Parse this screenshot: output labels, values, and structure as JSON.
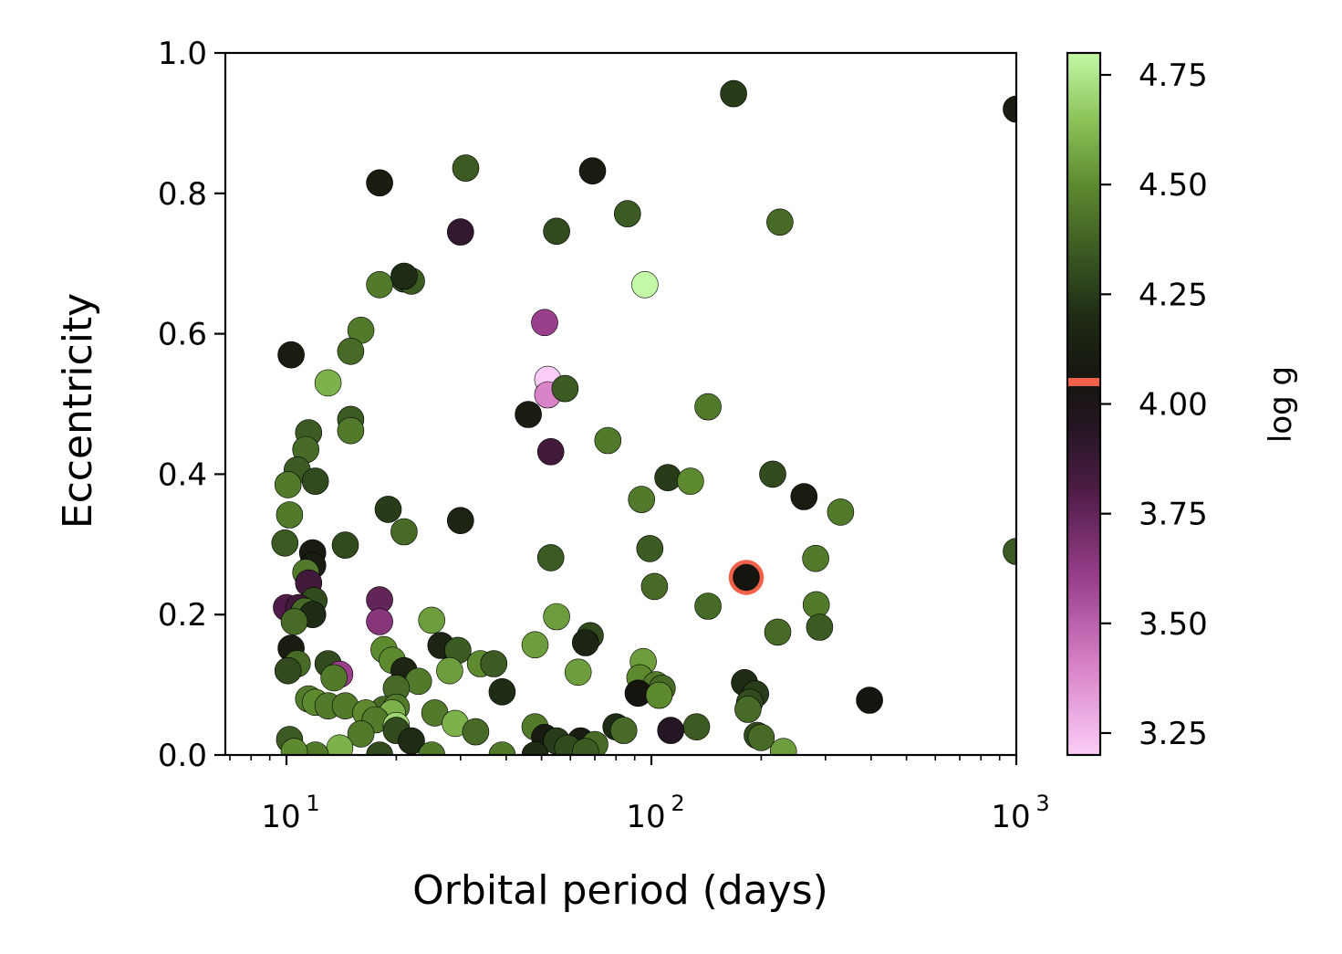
{
  "chart_data": {
    "type": "scatter",
    "xscale": "log",
    "xlabel": "Orbital period  (days)",
    "ylabel": "Eccentricity",
    "xlim": [
      6.8,
      1000
    ],
    "ylim": [
      0.0,
      1.0
    ],
    "x_ticks": [
      {
        "value": 10,
        "label": "10",
        "exp": "1"
      },
      {
        "value": 100,
        "label": "10",
        "exp": "2"
      },
      {
        "value": 1000,
        "label": "10",
        "exp": "3"
      }
    ],
    "y_ticks": [
      {
        "value": 0.0,
        "label": "0.0"
      },
      {
        "value": 0.2,
        "label": "0.2"
      },
      {
        "value": 0.4,
        "label": "0.4"
      },
      {
        "value": 0.6,
        "label": "0.6"
      },
      {
        "value": 0.8,
        "label": "0.8"
      },
      {
        "value": 1.0,
        "label": "1.0"
      }
    ],
    "colorbar": {
      "label": "log g",
      "range": [
        3.2,
        4.8
      ],
      "ticks": [
        {
          "value": 3.25,
          "label": "3.25"
        },
        {
          "value": 3.5,
          "label": "3.50"
        },
        {
          "value": 3.75,
          "label": "3.75"
        },
        {
          "value": 4.0,
          "label": "4.00"
        },
        {
          "value": 4.25,
          "label": "4.25"
        },
        {
          "value": 4.5,
          "label": "4.50"
        },
        {
          "value": 4.75,
          "label": "4.75"
        }
      ],
      "marker_value": 4.05,
      "marker_color": "#f4614b",
      "stops": [
        {
          "v": 3.2,
          "c": "#fbcdf6"
        },
        {
          "v": 3.4,
          "c": "#d983c9"
        },
        {
          "v": 3.6,
          "c": "#9a3f8c"
        },
        {
          "v": 3.8,
          "c": "#4f1c47"
        },
        {
          "v": 3.95,
          "c": "#241622"
        },
        {
          "v": 4.05,
          "c": "#15140f"
        },
        {
          "v": 4.2,
          "c": "#1f2c15"
        },
        {
          "v": 4.35,
          "c": "#3b5b22"
        },
        {
          "v": 4.5,
          "c": "#5e8a2f"
        },
        {
          "v": 4.65,
          "c": "#8cc45a"
        },
        {
          "v": 4.8,
          "c": "#c2f8a6"
        }
      ]
    },
    "highlight": {
      "period": 182,
      "ecc": 0.253,
      "logg": 4.05,
      "ring_color": "#f4614b"
    },
    "points": [
      [
        168,
        0.942,
        4.25
      ],
      [
        1000,
        0.92,
        4.1
      ],
      [
        31,
        0.836,
        4.35
      ],
      [
        69,
        0.832,
        4.1
      ],
      [
        18,
        0.815,
        4.1
      ],
      [
        86,
        0.771,
        4.35
      ],
      [
        225,
        0.759,
        4.4
      ],
      [
        30,
        0.745,
        3.9
      ],
      [
        55,
        0.746,
        4.3
      ],
      [
        21,
        0.678,
        4.3
      ],
      [
        22,
        0.675,
        4.35
      ],
      [
        18,
        0.67,
        4.45
      ],
      [
        21,
        0.682,
        4.2
      ],
      [
        96,
        0.67,
        4.8
      ],
      [
        16,
        0.605,
        4.45
      ],
      [
        51,
        0.616,
        3.6
      ],
      [
        15,
        0.575,
        4.4
      ],
      [
        10.3,
        0.57,
        4.1
      ],
      [
        13,
        0.53,
        4.6
      ],
      [
        52,
        0.535,
        3.2
      ],
      [
        52,
        0.513,
        3.4
      ],
      [
        58,
        0.522,
        4.35
      ],
      [
        46,
        0.485,
        4.1
      ],
      [
        143,
        0.496,
        4.45
      ],
      [
        15,
        0.478,
        4.35
      ],
      [
        15,
        0.462,
        4.45
      ],
      [
        11.5,
        0.459,
        4.35
      ],
      [
        11.3,
        0.435,
        4.4
      ],
      [
        76,
        0.448,
        4.45
      ],
      [
        53,
        0.432,
        3.85
      ],
      [
        10.7,
        0.406,
        4.35
      ],
      [
        10.1,
        0.385,
        4.45
      ],
      [
        12,
        0.39,
        4.3
      ],
      [
        111,
        0.395,
        4.25
      ],
      [
        128,
        0.39,
        4.5
      ],
      [
        215,
        0.4,
        4.3
      ],
      [
        262,
        0.368,
        4.1
      ],
      [
        94,
        0.364,
        4.45
      ],
      [
        330,
        0.346,
        4.45
      ],
      [
        19,
        0.35,
        4.25
      ],
      [
        10.2,
        0.342,
        4.45
      ],
      [
        21,
        0.318,
        4.4
      ],
      [
        30,
        0.334,
        4.15
      ],
      [
        14.5,
        0.299,
        4.3
      ],
      [
        9.9,
        0.302,
        4.35
      ],
      [
        99,
        0.294,
        4.35
      ],
      [
        1000,
        0.29,
        4.35
      ],
      [
        53,
        0.281,
        4.35
      ],
      [
        282,
        0.28,
        4.45
      ],
      [
        11.8,
        0.288,
        4.1
      ],
      [
        11.8,
        0.27,
        4.1
      ],
      [
        11.3,
        0.26,
        4.45
      ],
      [
        11.5,
        0.245,
        3.85
      ],
      [
        102,
        0.24,
        4.4
      ],
      [
        11.9,
        0.22,
        4.3
      ],
      [
        18,
        0.221,
        3.75
      ],
      [
        10.0,
        0.21,
        3.8
      ],
      [
        10.8,
        0.21,
        3.85
      ],
      [
        11.2,
        0.205,
        4.4
      ],
      [
        11.8,
        0.2,
        4.2
      ],
      [
        55,
        0.197,
        4.55
      ],
      [
        143,
        0.212,
        4.4
      ],
      [
        283,
        0.214,
        4.45
      ],
      [
        10.5,
        0.19,
        4.4
      ],
      [
        18,
        0.19,
        3.65
      ],
      [
        25,
        0.192,
        4.55
      ],
      [
        222,
        0.175,
        4.4
      ],
      [
        289,
        0.182,
        4.35
      ],
      [
        68,
        0.17,
        4.3
      ],
      [
        66,
        0.16,
        4.15
      ],
      [
        48,
        0.157,
        4.55
      ],
      [
        26.5,
        0.156,
        4.15
      ],
      [
        10.3,
        0.152,
        4.1
      ],
      [
        18.5,
        0.15,
        4.5
      ],
      [
        29.5,
        0.149,
        4.35
      ],
      [
        19.5,
        0.135,
        4.5
      ],
      [
        13,
        0.13,
        4.3
      ],
      [
        34,
        0.13,
        4.5
      ],
      [
        37,
        0.13,
        4.35
      ],
      [
        95,
        0.133,
        4.55
      ],
      [
        10.7,
        0.13,
        4.4
      ],
      [
        10.1,
        0.12,
        4.3
      ],
      [
        14,
        0.115,
        3.6
      ],
      [
        21,
        0.12,
        4.15
      ],
      [
        28,
        0.12,
        4.55
      ],
      [
        63,
        0.118,
        4.55
      ],
      [
        13.5,
        0.11,
        4.45
      ],
      [
        93,
        0.11,
        4.5
      ],
      [
        23,
        0.105,
        4.45
      ],
      [
        180,
        0.103,
        4.2
      ],
      [
        103,
        0.1,
        4.45
      ],
      [
        107,
        0.095,
        4.4
      ],
      [
        20,
        0.095,
        4.4
      ],
      [
        39,
        0.09,
        4.2
      ],
      [
        92,
        0.088,
        4.05
      ],
      [
        193,
        0.087,
        4.25
      ],
      [
        105,
        0.085,
        4.5
      ],
      [
        186,
        0.075,
        4.3
      ],
      [
        11.5,
        0.08,
        4.45
      ],
      [
        12,
        0.075,
        4.5
      ],
      [
        13,
        0.07,
        4.45
      ],
      [
        14.5,
        0.07,
        4.45
      ],
      [
        184,
        0.065,
        4.4
      ],
      [
        18.5,
        0.065,
        4.4
      ],
      [
        20,
        0.068,
        4.45
      ],
      [
        396,
        0.078,
        4.05
      ],
      [
        16.5,
        0.06,
        4.5
      ],
      [
        19.5,
        0.06,
        4.6
      ],
      [
        25.5,
        0.06,
        4.45
      ],
      [
        17.5,
        0.05,
        4.45
      ],
      [
        29,
        0.045,
        4.6
      ],
      [
        20,
        0.042,
        4.7
      ],
      [
        80,
        0.04,
        4.2
      ],
      [
        133,
        0.04,
        4.35
      ],
      [
        48,
        0.04,
        4.45
      ],
      [
        20,
        0.035,
        4.3
      ],
      [
        113,
        0.035,
        3.95
      ],
      [
        84,
        0.035,
        4.4
      ],
      [
        33,
        0.033,
        4.4
      ],
      [
        16,
        0.03,
        4.45
      ],
      [
        195,
        0.028,
        4.3
      ],
      [
        200,
        0.025,
        4.4
      ],
      [
        51,
        0.025,
        4.1
      ],
      [
        55,
        0.02,
        4.25
      ],
      [
        22,
        0.02,
        4.2
      ],
      [
        10.2,
        0.022,
        4.35
      ],
      [
        64,
        0.02,
        4.1
      ],
      [
        70,
        0.015,
        4.4
      ],
      [
        14,
        0.01,
        4.6
      ],
      [
        39,
        0.0,
        4.45
      ],
      [
        48,
        0.0,
        4.2
      ],
      [
        12,
        0.0,
        4.45
      ],
      [
        230,
        0.005,
        4.55
      ],
      [
        10.5,
        0.005,
        4.5
      ],
      [
        18,
        0.0,
        4.3
      ],
      [
        25,
        0.0,
        4.45
      ],
      [
        59,
        0.01,
        4.3
      ],
      [
        66,
        0.005,
        4.35
      ]
    ]
  }
}
